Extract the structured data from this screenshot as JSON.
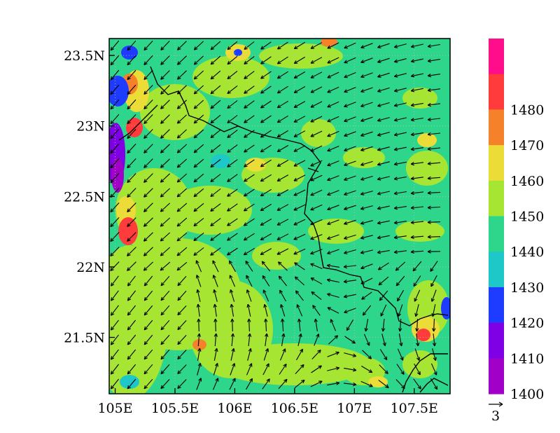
{
  "map": {
    "lat_ticks": [
      "23.5N",
      "23N",
      "22.5N",
      "22N",
      "21.5N"
    ],
    "lat_values": [
      23.5,
      23.0,
      22.5,
      22.0,
      21.5
    ],
    "lon_ticks": [
      "105E",
      "105.5E",
      "106E",
      "106.5E",
      "107E",
      "107.5E"
    ],
    "lon_values": [
      105.0,
      105.5,
      106.0,
      106.5,
      107.0,
      107.5
    ],
    "lon_range": [
      104.95,
      107.8
    ],
    "lat_range": [
      21.1,
      23.62
    ],
    "field_base_color": "#2ed68c",
    "vector_color": "#000000",
    "border_color": "#000000"
  },
  "colorbar": {
    "levels": [
      {
        "color": "#ff0d8a"
      },
      {
        "label": "1480",
        "color": "#ff3b3b"
      },
      {
        "label": "1470",
        "color": "#f5822a"
      },
      {
        "label": "1460",
        "color": "#ebdc37"
      },
      {
        "label": "1450",
        "color": "#a6e632"
      },
      {
        "label": "1440",
        "color": "#2ed68c"
      },
      {
        "label": "1430",
        "color": "#1ec8c8"
      },
      {
        "label": "1420",
        "color": "#1e3cff"
      },
      {
        "label": "1410",
        "color": "#8000e6"
      },
      {
        "label": "1400",
        "color": "#a000c8"
      }
    ]
  },
  "reference_vector": {
    "label": "3"
  }
}
